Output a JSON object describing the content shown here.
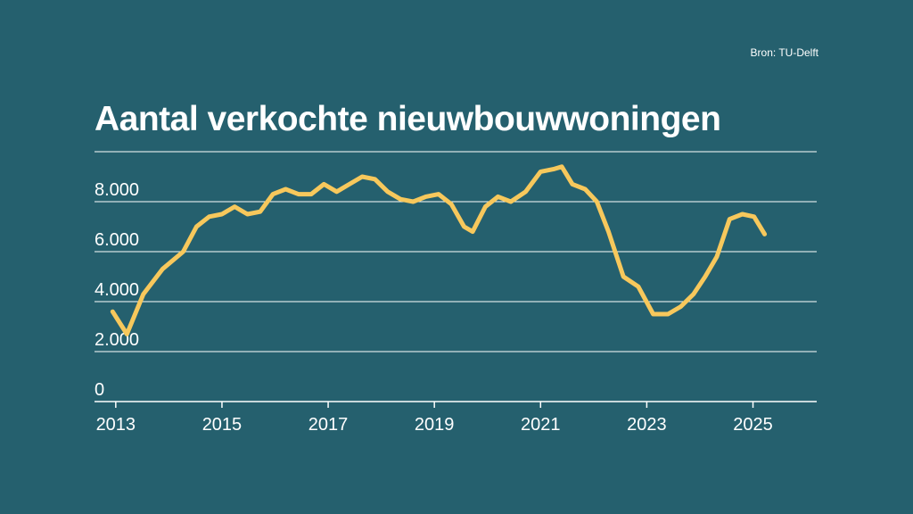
{
  "source_label": "Bron: TU-Delft",
  "chart_data": {
    "type": "line",
    "title": "Aantal verkochte nieuwbouwwoningen",
    "xlabel": "",
    "ylabel": "",
    "xlim": [
      2012.6,
      2026.2
    ],
    "ylim": [
      0,
      10000
    ],
    "yticks": [
      0,
      2000,
      4000,
      6000,
      8000,
      10000
    ],
    "ytick_labels": [
      "0",
      "2.000",
      "4.000",
      "6.000",
      "8.000",
      ""
    ],
    "xticks": [
      2013,
      2015,
      2017,
      2019,
      2021,
      2023,
      2025
    ],
    "xtick_labels": [
      "2013",
      "2015",
      "2017",
      "2019",
      "2021",
      "2023",
      "2025"
    ],
    "grid": true,
    "line_color": "#f7c85c",
    "grid_color": "#ffffff",
    "background": "#25606e",
    "series": [
      {
        "name": "Aantal verkochte nieuwbouwwoningen",
        "x": [
          2012.94,
          2013.21,
          2013.52,
          2013.88,
          2014.27,
          2014.52,
          2014.76,
          2015.0,
          2015.24,
          2015.48,
          2015.72,
          2015.96,
          2016.2,
          2016.44,
          2016.68,
          2016.92,
          2017.16,
          2017.4,
          2017.64,
          2017.88,
          2018.12,
          2018.36,
          2018.6,
          2018.84,
          2019.08,
          2019.32,
          2019.56,
          2019.72,
          2019.96,
          2020.2,
          2020.44,
          2020.72,
          2021.0,
          2021.24,
          2021.4,
          2021.6,
          2021.84,
          2022.06,
          2022.28,
          2022.56,
          2022.84,
          2023.12,
          2023.4,
          2023.64,
          2023.88,
          2024.1,
          2024.32,
          2024.56,
          2024.8,
          2025.02,
          2025.22
        ],
        "y": [
          3600,
          2700,
          4300,
          5300,
          6000,
          7000,
          7400,
          7500,
          7800,
          7500,
          7600,
          8300,
          8500,
          8300,
          8300,
          8700,
          8400,
          8700,
          9000,
          8900,
          8400,
          8100,
          8000,
          8200,
          8300,
          7900,
          7000,
          6800,
          7800,
          8200,
          8000,
          8400,
          9200,
          9300,
          9400,
          8700,
          8500,
          8000,
          6800,
          5000,
          4600,
          3500,
          3500,
          3800,
          4300,
          5000,
          5800,
          7300,
          7500,
          7400,
          6700
        ]
      }
    ]
  }
}
